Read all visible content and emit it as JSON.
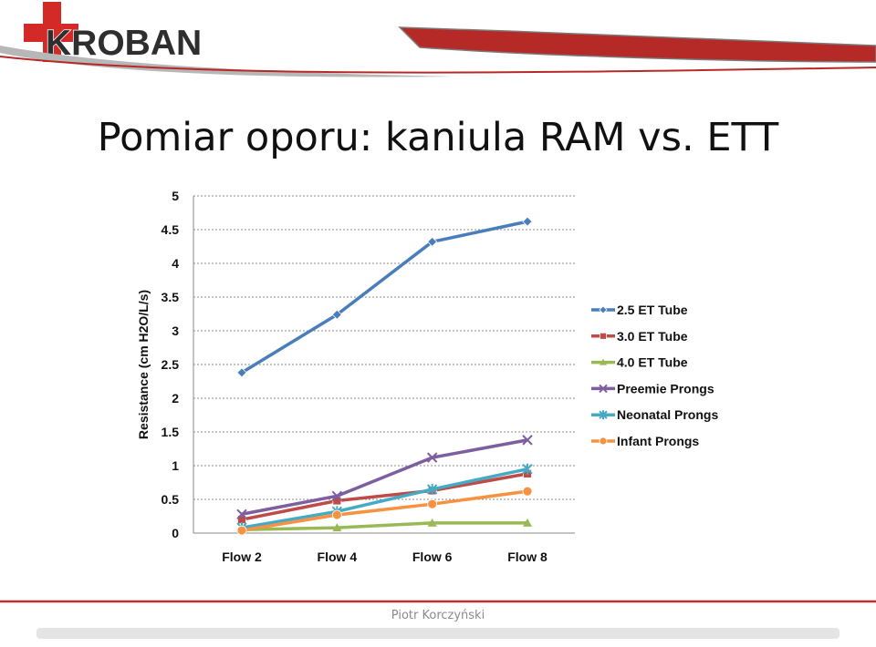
{
  "logo": {
    "text": "KROBAN"
  },
  "slide": {
    "title": "Pomiar oporu: kaniula RAM vs. ETT"
  },
  "footer": {
    "author": "Piotr Korczyński"
  },
  "colors": {
    "logo_red": "#d42a27",
    "banner_red": "#b52a26",
    "grid": "#999999"
  },
  "chart_data": {
    "type": "line",
    "categories": [
      "Flow 2",
      "Flow 4",
      "Flow 6",
      "Flow 8"
    ],
    "ylabel": "Resistance (cm H2O/L/s)",
    "xlabel": "",
    "ylim": [
      0,
      5
    ],
    "yticks": [
      "0",
      "0.5",
      "1",
      "1.5",
      "2",
      "2.5",
      "3",
      "3.5",
      "4",
      "4.5",
      "5"
    ],
    "grid": "horizontal dashed",
    "legend": "right",
    "series": [
      {
        "name": "2.5 ET Tube",
        "color": "#4a7ebb",
        "marker": "diamond",
        "values": [
          2.38,
          3.24,
          4.32,
          4.62
        ]
      },
      {
        "name": "3.0 ET Tube",
        "color": "#be4b48",
        "marker": "square",
        "values": [
          0.2,
          0.48,
          0.63,
          0.88
        ]
      },
      {
        "name": "4.0 ET Tube",
        "color": "#98b954",
        "marker": "triangle",
        "values": [
          0.05,
          0.08,
          0.15,
          0.15
        ]
      },
      {
        "name": "Preemie Prongs",
        "color": "#7d5fa0",
        "marker": "x",
        "values": [
          0.28,
          0.55,
          1.12,
          1.38
        ]
      },
      {
        "name": "Neonatal  Prongs",
        "color": "#46aac5",
        "marker": "star",
        "values": [
          0.08,
          0.32,
          0.65,
          0.95
        ]
      },
      {
        "name": "Infant Prongs",
        "color": "#f69240",
        "marker": "circle",
        "values": [
          0.04,
          0.27,
          0.43,
          0.62
        ]
      }
    ]
  }
}
